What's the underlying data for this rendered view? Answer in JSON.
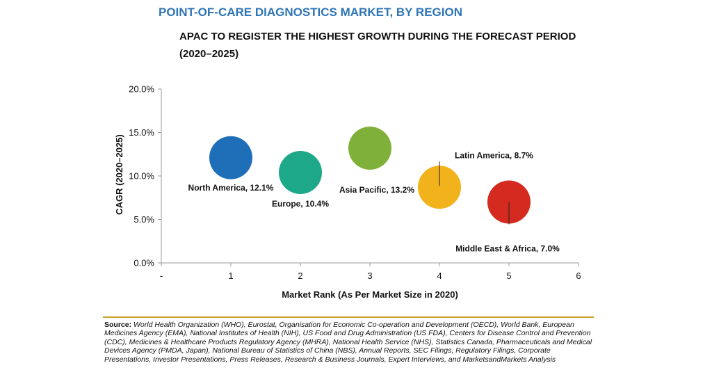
{
  "header": {
    "title": "POINT-OF-CARE DIAGNOSTICS MARKET, BY REGION",
    "subtitle": "APAC TO REGISTER THE HIGHEST GROWTH DURING THE FORECAST PERIOD (2020–2025)"
  },
  "chart_data": {
    "type": "scatter",
    "xlabel": "Market Rank (As Per Market Size in 2020)",
    "ylabel": "CAGR (2020–2025)",
    "xlim": [
      0,
      6
    ],
    "ylim": [
      0,
      20
    ],
    "x_tick_labels": [
      "-",
      "1",
      "2",
      "3",
      "4",
      "5",
      "6"
    ],
    "y_tick_labels": [
      "0.0%",
      "5.0%",
      "10.0%",
      "15.0%",
      "20.0%"
    ],
    "y_ticks": [
      0,
      5,
      10,
      15,
      20
    ],
    "points": [
      {
        "label": "North America, 12.1%",
        "x": 1,
        "y": 12.1,
        "color": "#1f6fb8"
      },
      {
        "label": "Europe, 10.4%",
        "x": 2,
        "y": 10.4,
        "color": "#1ea88a"
      },
      {
        "label": "Asia Pacific, 13.2%",
        "x": 3,
        "y": 13.2,
        "color": "#7fb03a"
      },
      {
        "label": "Latin America, 8.7%",
        "x": 4,
        "y": 8.7,
        "color": "#f2b21c"
      },
      {
        "label": "Middle East & Africa, 7.0%",
        "x": 5,
        "y": 7.0,
        "color": "#d42a20"
      }
    ],
    "grid": false
  },
  "footer": {
    "source_label": "Source:",
    "source_text": "World Health Organization (WHO), Eurostat, Organisation for Economic Co-operation and Development (OECD), World Bank, European Medicines Agency (EMA), National Institutes of Health (NIH), US Food and Drug Administration (US FDA), Centers for Disease Control and Prevention (CDC), Medicines & Healthcare Products Regulatory Agency (MHRA), National Health Service (NHS), Statistics Canada, Pharmaceuticals and Medical Devices Agency (PMDA, Japan), National Bureau of Statistics of China (NBS), Annual Reports, SEC Filings, Regulatory Filings, Corporate Presentations, Investor Presentations, Press Releases, Research & Business Journals, Expert Interviews, and MarketsandMarkets Analysis"
  }
}
